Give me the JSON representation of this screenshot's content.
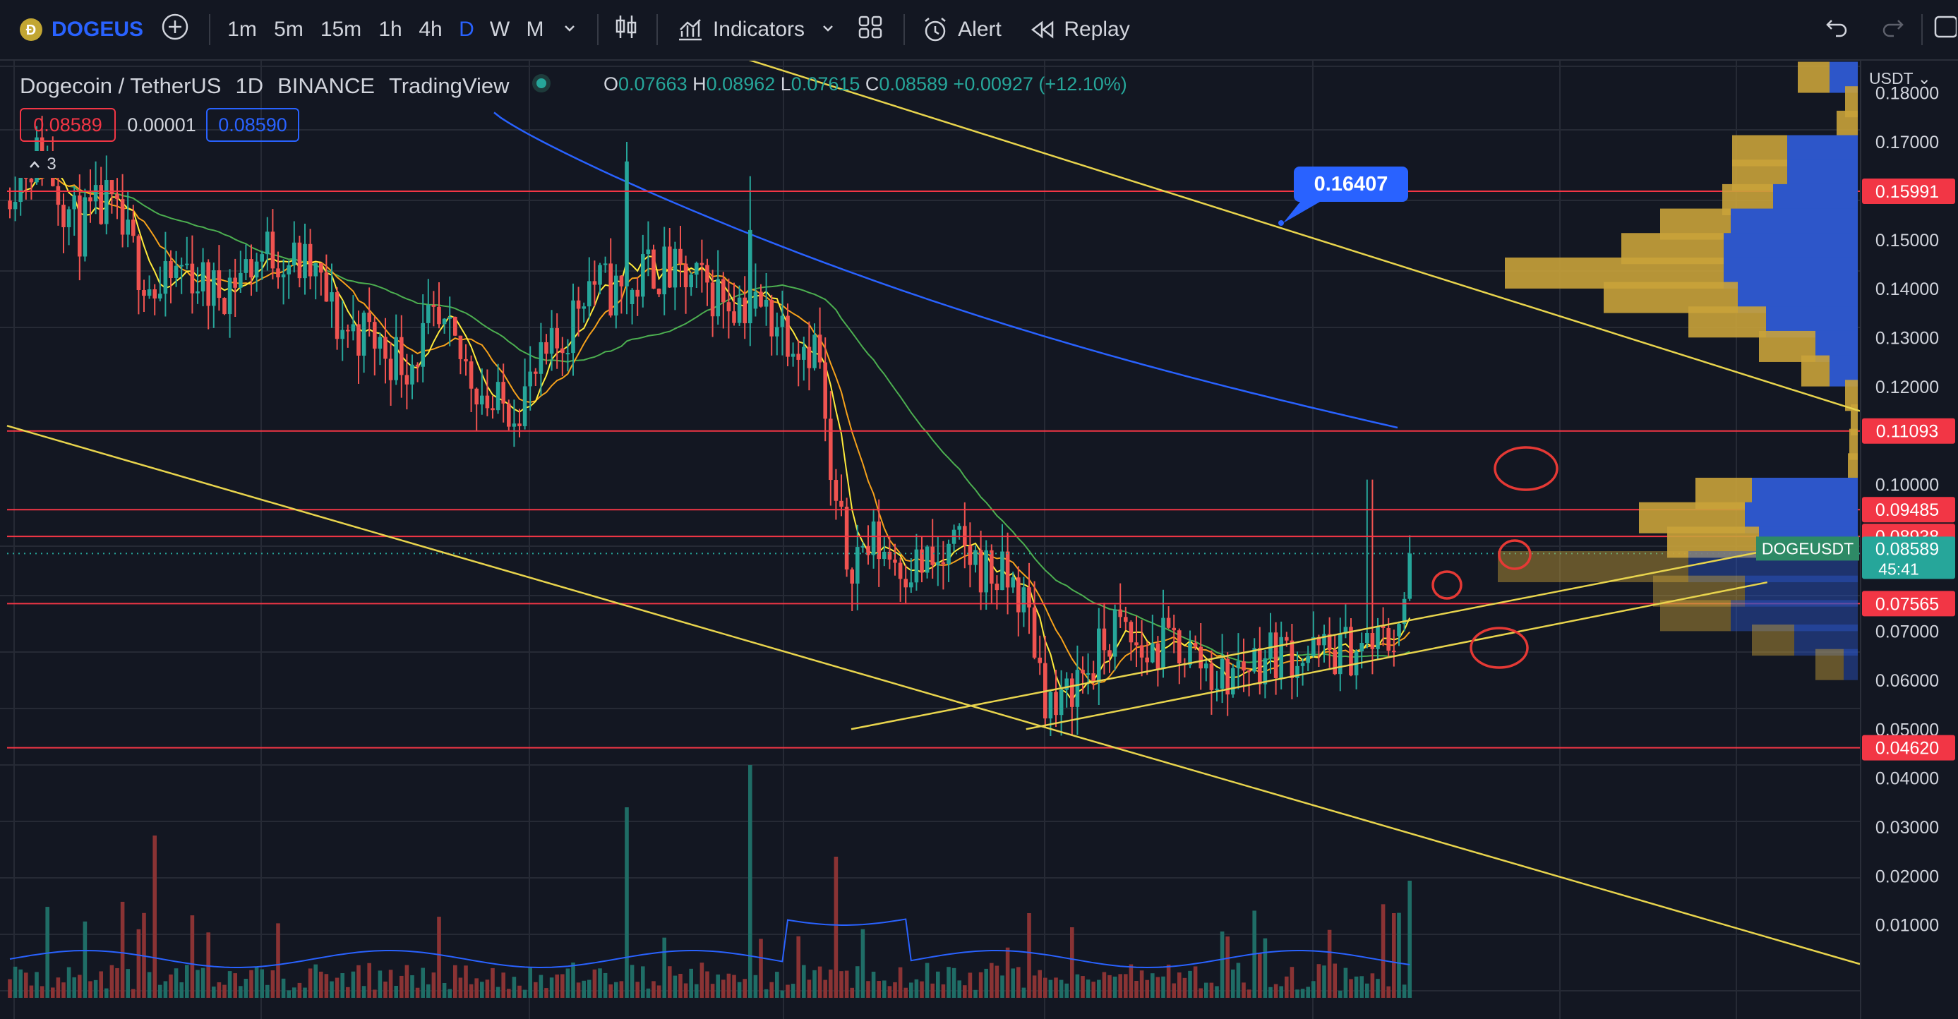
{
  "toolbar": {
    "symbol": "DOGEUS",
    "intervals": [
      "1m",
      "5m",
      "15m",
      "1h",
      "4h",
      "D",
      "W",
      "M"
    ],
    "active_interval": "D",
    "indicators_label": "Indicators",
    "alert_label": "Alert",
    "replay_label": "Replay"
  },
  "legend": {
    "title": "Dogecoin / TetherUS",
    "interval": "1D",
    "exchange": "BINANCE",
    "source": "TradingView",
    "open_label": "O",
    "open": "0.07663",
    "high_label": "H",
    "high": "0.08962",
    "low_label": "L",
    "low": "0.07615",
    "close_label": "C",
    "close": "0.08589",
    "change": "+0.00927 (+12.10%)",
    "bid": "0.08589",
    "spread": "0.00001",
    "ask": "0.08590",
    "indicator_count": "3"
  },
  "callout_price": "0.16407",
  "axis": {
    "currency": "USDT",
    "ticks": [
      "0.18000",
      "0.17000",
      "0.16000",
      "0.15000",
      "0.14000",
      "0.13000",
      "0.12000",
      "0.10000",
      "0.07000",
      "0.06000",
      "0.05000",
      "0.04000",
      "0.03000",
      "0.02000",
      "0.01000"
    ]
  },
  "levels": [
    {
      "value": "0.15991",
      "price": 0.15991
    },
    {
      "value": "0.11093",
      "price": 0.11093
    },
    {
      "value": "0.09485",
      "price": 0.09485
    },
    {
      "value": "0.08938",
      "price": 0.08938
    },
    {
      "value": "0.07565",
      "price": 0.07565
    },
    {
      "value": "0.04620",
      "price": 0.0462
    }
  ],
  "current": {
    "symbol": "DOGEUSDT",
    "price": "0.08589",
    "countdown": "45:41"
  },
  "colors": {
    "background": "#131722",
    "up": "#26a69a",
    "down": "#ef5350",
    "level": "#f23645",
    "trend": "#e8d44d",
    "ma_long": "#2962ff",
    "ma_mid": "#4caf50",
    "ma_fast": "#f7a21b",
    "ma_faster": "#ffeb3b",
    "vp_up": "#c9a23a",
    "vp_down": "#2d56c9",
    "annotation": "#e53935"
  },
  "chart_data": {
    "type": "candlestick",
    "ylim": [
      0.0,
      0.19
    ],
    "last_candle": {
      "open": 0.07663,
      "high": 0.08962,
      "low": 0.07615,
      "close": 0.08589
    },
    "trendlines": [
      {
        "from": [
          0,
          0.112
        ],
        "to": [
          1.0,
          0.002
        ]
      },
      {
        "from": [
          0.39,
          0.188
        ],
        "to": [
          1.0,
          0.115
        ]
      },
      {
        "from": [
          0.55,
          0.05
        ],
        "to": [
          0.95,
          0.08
        ]
      }
    ],
    "volume_profile_levels": [
      0.185,
      0.18,
      0.175,
      0.17,
      0.165,
      0.16,
      0.155,
      0.15,
      0.145,
      0.14,
      0.135,
      0.13,
      0.125,
      0.12,
      0.115,
      0.11,
      0.105,
      0.1,
      0.095,
      0.09,
      0.085,
      0.08,
      0.075,
      0.07,
      0.065,
      0.06,
      0.055
    ]
  }
}
